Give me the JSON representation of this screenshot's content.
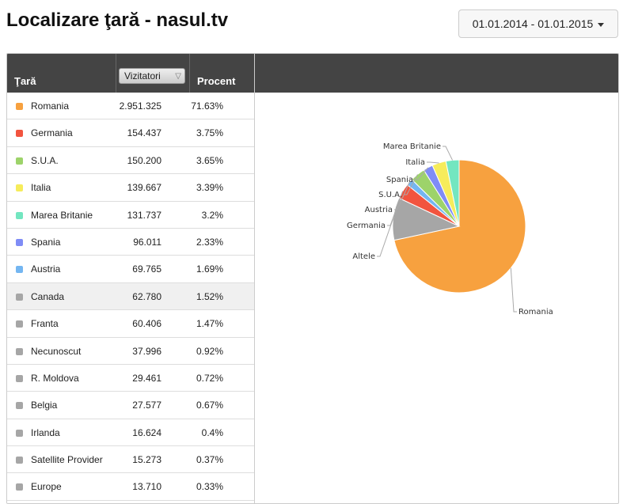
{
  "page": {
    "title": "Localizare ţară - nasul.tv"
  },
  "date_range": {
    "label": "01.01.2014 - 01.01.2015"
  },
  "table": {
    "headers": {
      "country": "Ţară",
      "metric_select": "Vizitatori",
      "percent": "Procent"
    },
    "rows": [
      {
        "name": "Romania",
        "visitors": "2.951.325",
        "percent": "71.63%",
        "color": "#f7a13f"
      },
      {
        "name": "Germania",
        "visitors": "154.437",
        "percent": "3.75%",
        "color": "#f2543f"
      },
      {
        "name": "S.U.A.",
        "visitors": "150.200",
        "percent": "3.65%",
        "color": "#9dd36a"
      },
      {
        "name": "Italia",
        "visitors": "139.667",
        "percent": "3.39%",
        "color": "#f6ec5b"
      },
      {
        "name": "Marea Britanie",
        "visitors": "131.737",
        "percent": "3.2%",
        "color": "#73e6c0"
      },
      {
        "name": "Spania",
        "visitors": "96.011",
        "percent": "2.33%",
        "color": "#7f8cf6"
      },
      {
        "name": "Austria",
        "visitors": "69.765",
        "percent": "1.69%",
        "color": "#74b6f1"
      },
      {
        "name": "Canada",
        "visitors": "62.780",
        "percent": "1.52%",
        "color": "#a6a6a6"
      },
      {
        "name": "Franta",
        "visitors": "60.406",
        "percent": "1.47%",
        "color": "#a6a6a6"
      },
      {
        "name": "Necunoscut",
        "visitors": "37.996",
        "percent": "0.92%",
        "color": "#a6a6a6"
      },
      {
        "name": "R. Moldova",
        "visitors": "29.461",
        "percent": "0.72%",
        "color": "#a6a6a6"
      },
      {
        "name": "Belgia",
        "visitors": "27.577",
        "percent": "0.67%",
        "color": "#a6a6a6"
      },
      {
        "name": "Irlanda",
        "visitors": "16.624",
        "percent": "0.4%",
        "color": "#a6a6a6"
      },
      {
        "name": "Satellite Provider",
        "visitors": "15.273",
        "percent": "0.37%",
        "color": "#a6a6a6"
      },
      {
        "name": "Europe",
        "visitors": "13.710",
        "percent": "0.33%",
        "color": "#a6a6a6"
      }
    ]
  },
  "chart_data": {
    "type": "pie",
    "categories": [
      "Romania",
      "Altele",
      "Germania",
      "Austria",
      "S.U.A.",
      "Spania",
      "Italia",
      "Marea Britanie"
    ],
    "values": [
      71.63,
      10.36,
      3.75,
      1.69,
      3.65,
      2.33,
      3.39,
      3.2
    ],
    "colors": [
      "#f7a13f",
      "#a6a6a6",
      "#f2543f",
      "#74b6f1",
      "#9dd36a",
      "#7f8cf6",
      "#f6ec5b",
      "#73e6c0"
    ]
  }
}
